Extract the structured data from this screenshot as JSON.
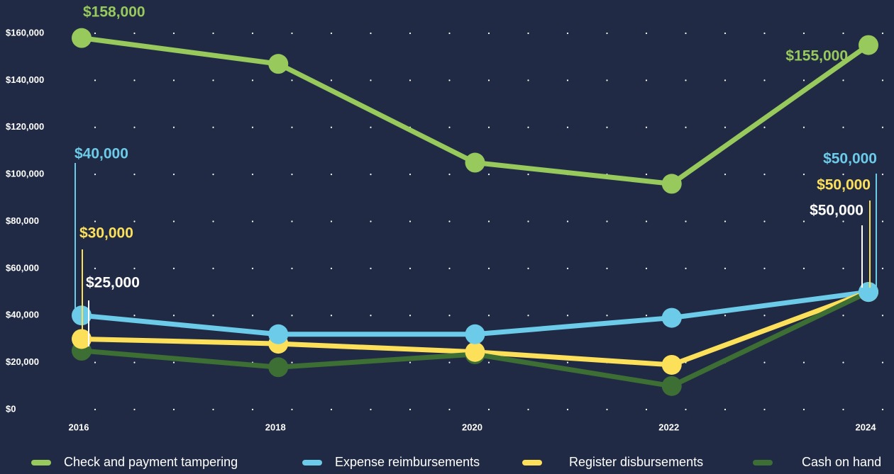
{
  "chart_data": {
    "type": "line",
    "x": [
      2016,
      2018,
      2020,
      2022,
      2024
    ],
    "xlim": [
      2016,
      2024
    ],
    "xticks": [
      2016,
      2018,
      2020,
      2022,
      2024
    ],
    "ylim": [
      0,
      160000
    ],
    "yticks": [
      {
        "value": 0,
        "label": "$0"
      },
      {
        "value": 20000,
        "label": "$20,000"
      },
      {
        "value": 40000,
        "label": "$40,000"
      },
      {
        "value": 60000,
        "label": "$60,000"
      },
      {
        "value": 80000,
        "label": "$80,000"
      },
      {
        "value": 100000,
        "label": "$100,000"
      },
      {
        "value": 120000,
        "label": "$120,000"
      },
      {
        "value": 140000,
        "label": "$140,000"
      },
      {
        "value": 160000,
        "label": "$160,000"
      }
    ],
    "grid": true,
    "legend": "bottom",
    "series": [
      {
        "name": "Check and payment tampering",
        "color": "#97c95c",
        "label_color": "#97c95c",
        "values": [
          158000,
          147000,
          105000,
          96000,
          155000
        ],
        "value_labels": [
          "$158,000",
          null,
          null,
          null,
          "$155,000"
        ]
      },
      {
        "name": "Expense reimbursements",
        "color": "#6ccbe8",
        "label_color": "#6ccbe8",
        "values": [
          40000,
          32000,
          32000,
          39000,
          50000
        ],
        "value_labels": [
          "$40,000",
          null,
          null,
          null,
          "$50,000"
        ]
      },
      {
        "name": "Register disbursements",
        "color": "#fde05a",
        "label_color": "#fde05a",
        "values": [
          30000,
          28000,
          24500,
          19000,
          50000
        ],
        "value_labels": [
          "$30,000",
          null,
          null,
          null,
          "$50,000"
        ]
      },
      {
        "name": "Cash on hand",
        "color": "#3d6e34",
        "label_color": "#ffffff",
        "values": [
          25000,
          18000,
          23500,
          10000,
          50000
        ],
        "value_labels": [
          "$25,000",
          null,
          null,
          null,
          "$50,000"
        ]
      }
    ]
  }
}
